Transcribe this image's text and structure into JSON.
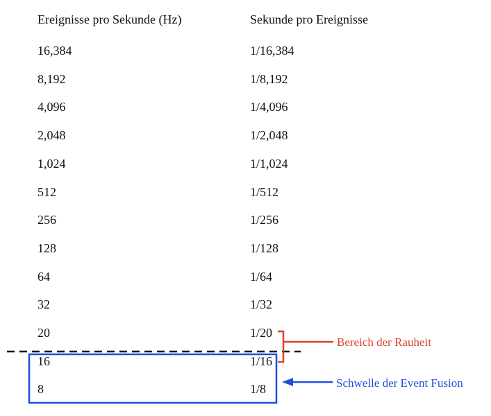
{
  "table": {
    "headers": [
      "Ereignisse pro Sekunde (Hz)",
      "Sekunde pro Ereignisse"
    ],
    "rows": [
      [
        "16,384",
        "1/16,384"
      ],
      [
        "8,192",
        "1/8,192"
      ],
      [
        "4,096",
        "1/4,096"
      ],
      [
        "2,048",
        "1/2,048"
      ],
      [
        "1,024",
        "1/1,024"
      ],
      [
        "512",
        "1/512"
      ],
      [
        "256",
        "1/256"
      ],
      [
        "128",
        "1/128"
      ],
      [
        "64",
        "1/64"
      ],
      [
        "32",
        "1/32"
      ],
      [
        "20",
        "1/20"
      ],
      [
        "16",
        "1/16"
      ],
      [
        "8",
        "1/8"
      ]
    ]
  },
  "annotations": {
    "roughness_range": "Bereich der Rauheit",
    "fusion_threshold": "Schwelle der Event Fusion"
  },
  "colors": {
    "text": "#111111",
    "roughness": "#d9412b",
    "fusion": "#1c4fdc",
    "threshold_line": "#000000"
  }
}
